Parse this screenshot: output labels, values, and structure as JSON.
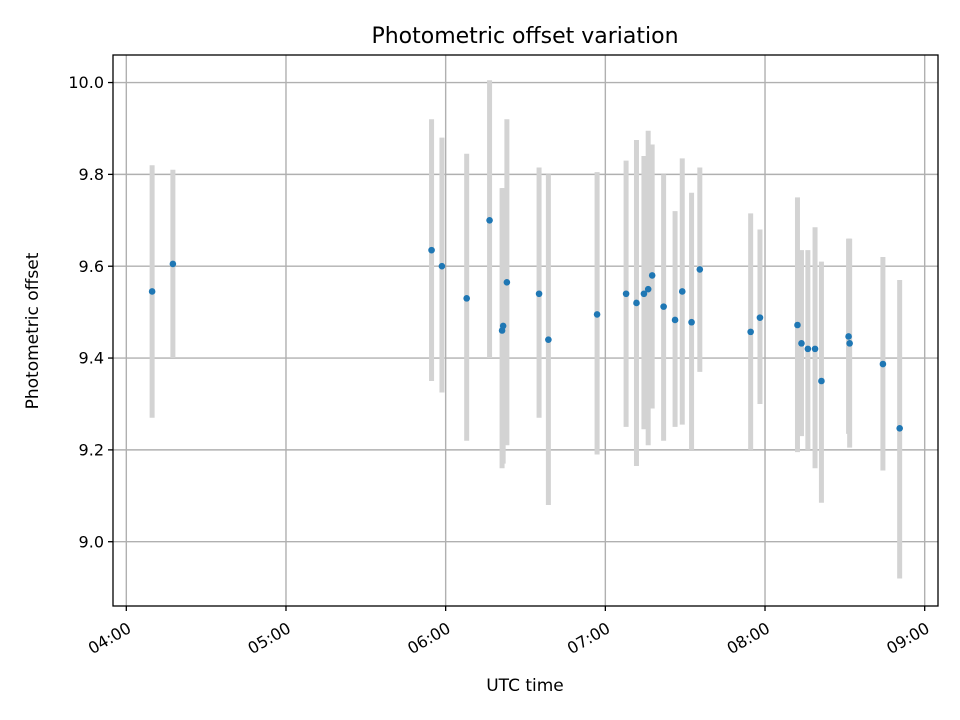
{
  "chart_data": {
    "type": "scatter",
    "title": "Photometric offset variation",
    "xlabel": "UTC time",
    "ylabel": "Photometric offset",
    "x_axis": "time",
    "xlim": [
      "03:55",
      "09:05"
    ],
    "ylim": [
      8.86,
      10.06
    ],
    "x_ticks": [
      "04:00",
      "05:00",
      "06:00",
      "07:00",
      "08:00",
      "09:00"
    ],
    "y_ticks": [
      9.0,
      9.2,
      9.4,
      9.6,
      9.8,
      10.0
    ],
    "y_tick_labels": [
      "9.0",
      "9.2",
      "9.4",
      "9.6",
      "9.8",
      "10.0"
    ],
    "grid": true,
    "colors": {
      "point": "#1f77b4",
      "errorbar": "#d3d3d3"
    },
    "points": [
      {
        "t": "04:09.7",
        "y": 9.545,
        "lo": 9.27,
        "hi": 9.82
      },
      {
        "t": "04:17.5",
        "y": 9.605,
        "lo": 9.4,
        "hi": 9.81
      },
      {
        "t": "05:54.7",
        "y": 9.635,
        "lo": 9.35,
        "hi": 9.92
      },
      {
        "t": "05:58.6",
        "y": 9.6,
        "lo": 9.325,
        "hi": 9.88
      },
      {
        "t": "06:07.9",
        "y": 9.53,
        "lo": 9.22,
        "hi": 9.845
      },
      {
        "t": "06:16.5",
        "y": 9.7,
        "lo": 9.4,
        "hi": 10.005
      },
      {
        "t": "06:21.2",
        "y": 9.46,
        "lo": 9.16,
        "hi": 9.77
      },
      {
        "t": "06:21.6",
        "y": 9.47,
        "lo": 9.17,
        "hi": 9.77
      },
      {
        "t": "06:23.0",
        "y": 9.565,
        "lo": 9.21,
        "hi": 9.92
      },
      {
        "t": "06:35.1",
        "y": 9.54,
        "lo": 9.27,
        "hi": 9.815
      },
      {
        "t": "06:38.6",
        "y": 9.44,
        "lo": 9.08,
        "hi": 9.8
      },
      {
        "t": "06:56.9",
        "y": 9.495,
        "lo": 9.19,
        "hi": 9.805
      },
      {
        "t": "07:07.8",
        "y": 9.54,
        "lo": 9.25,
        "hi": 9.83
      },
      {
        "t": "07:11.7",
        "y": 9.52,
        "lo": 9.165,
        "hi": 9.875
      },
      {
        "t": "07:14.5",
        "y": 9.54,
        "lo": 9.245,
        "hi": 9.84
      },
      {
        "t": "07:16.1",
        "y": 9.55,
        "lo": 9.21,
        "hi": 9.895
      },
      {
        "t": "07:17.6",
        "y": 9.58,
        "lo": 9.29,
        "hi": 9.865
      },
      {
        "t": "07:21.9",
        "y": 9.512,
        "lo": 9.22,
        "hi": 9.8
      },
      {
        "t": "07:26.2",
        "y": 9.483,
        "lo": 9.25,
        "hi": 9.72
      },
      {
        "t": "07:28.9",
        "y": 9.545,
        "lo": 9.255,
        "hi": 9.835
      },
      {
        "t": "07:32.4",
        "y": 9.478,
        "lo": 9.2,
        "hi": 9.76
      },
      {
        "t": "07:35.5",
        "y": 9.593,
        "lo": 9.37,
        "hi": 9.815
      },
      {
        "t": "07:54.6",
        "y": 9.457,
        "lo": 9.2,
        "hi": 9.715
      },
      {
        "t": "07:58.1",
        "y": 9.488,
        "lo": 9.3,
        "hi": 9.68
      },
      {
        "t": "08:12.2",
        "y": 9.472,
        "lo": 9.195,
        "hi": 9.75
      },
      {
        "t": "08:13.7",
        "y": 9.432,
        "lo": 9.23,
        "hi": 9.635
      },
      {
        "t": "08:16.1",
        "y": 9.42,
        "lo": 9.2,
        "hi": 9.635
      },
      {
        "t": "08:18.8",
        "y": 9.42,
        "lo": 9.16,
        "hi": 9.685
      },
      {
        "t": "08:21.2",
        "y": 9.35,
        "lo": 9.085,
        "hi": 9.61
      },
      {
        "t": "08:31.4",
        "y": 9.447,
        "lo": 9.235,
        "hi": 9.66
      },
      {
        "t": "08:31.8",
        "y": 9.432,
        "lo": 9.205,
        "hi": 9.66
      },
      {
        "t": "08:44.3",
        "y": 9.387,
        "lo": 9.155,
        "hi": 9.62
      },
      {
        "t": "08:50.6",
        "y": 9.247,
        "lo": 8.92,
        "hi": 9.57
      }
    ]
  }
}
